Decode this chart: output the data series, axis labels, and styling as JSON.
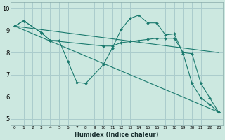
{
  "background_color": "#cce8e0",
  "grid_color": "#aacccc",
  "line_color": "#1a7a6e",
  "xlabel": "Humidex (Indice chaleur)",
  "xlim": [
    -0.5,
    23.5
  ],
  "ylim": [
    4.7,
    10.3
  ],
  "yticks": [
    5,
    6,
    7,
    8,
    9,
    10
  ],
  "xtick_labels": [
    "0",
    "1",
    "2",
    "3",
    "4",
    "5",
    "6",
    "7",
    "8",
    "9",
    "10",
    "11",
    "12",
    "13",
    "14",
    "15",
    "16",
    "17",
    "18",
    "19",
    "20",
    "21",
    "22",
    "23"
  ],
  "series": [
    {
      "x": [
        0,
        1,
        3,
        4,
        5,
        6,
        7,
        8,
        10,
        11,
        12,
        13,
        14,
        15,
        16,
        17,
        18,
        19,
        20,
        21,
        22,
        23
      ],
      "y": [
        9.2,
        9.45,
        8.9,
        8.55,
        8.55,
        7.6,
        6.65,
        6.6,
        7.45,
        8.2,
        9.05,
        9.55,
        9.7,
        9.35,
        9.35,
        8.8,
        8.85,
        7.95,
        6.6,
        5.95,
        5.65,
        5.3
      ],
      "has_markers": true
    },
    {
      "x": [
        0,
        1,
        3,
        4,
        10,
        11,
        12,
        13,
        14,
        15,
        16,
        17,
        18,
        19,
        20,
        21,
        22,
        23
      ],
      "y": [
        9.2,
        9.45,
        8.9,
        8.55,
        8.3,
        8.3,
        8.45,
        8.5,
        8.55,
        8.6,
        8.65,
        8.65,
        8.65,
        8.0,
        7.95,
        6.6,
        5.95,
        5.3
      ],
      "has_markers": true
    },
    {
      "x": [
        0,
        23
      ],
      "y": [
        9.2,
        8.0
      ],
      "has_markers": false
    },
    {
      "x": [
        0,
        23
      ],
      "y": [
        9.2,
        5.3
      ],
      "has_markers": false
    }
  ]
}
